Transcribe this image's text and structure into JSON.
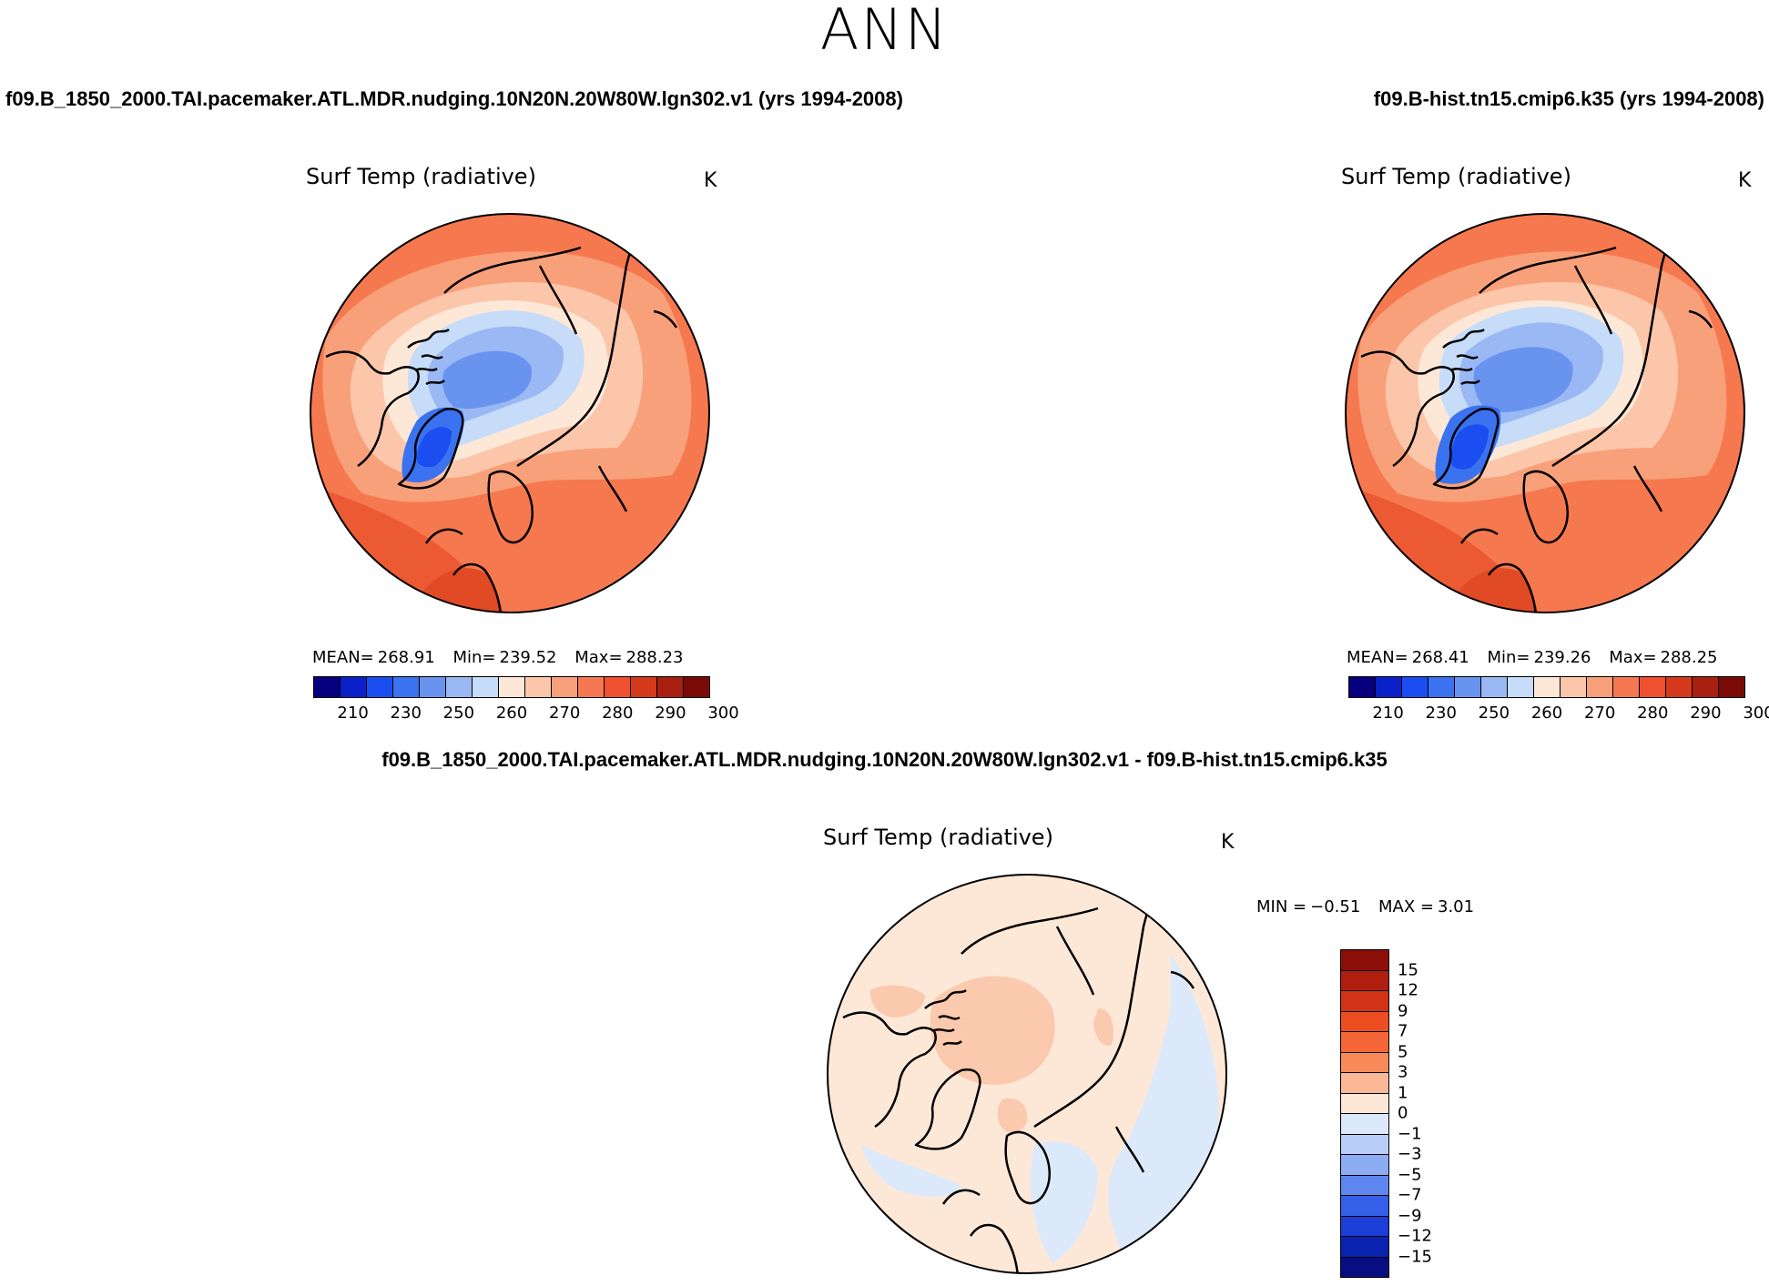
{
  "season": "ANN",
  "panels": [
    {
      "id": "case1",
      "case_title": "f09.B_1850_2000.TAI.pacemaker.ATL.MDR.nudging.10N20N.20W80W.lgn302.v1 (yrs 1994-2008)",
      "variable": "Surf Temp (radiative)",
      "units": "K",
      "stats": {
        "mean_label": "MEAN=",
        "mean": "268.91",
        "min_label": "Min=",
        "min": "239.52",
        "max_label": "Max=",
        "max": "288.23"
      }
    },
    {
      "id": "case2",
      "case_title": "f09.B-hist.tn15.cmip6.k35 (yrs 1994-2008)",
      "variable": "Surf Temp (radiative)",
      "units": "K",
      "stats": {
        "mean_label": "MEAN=",
        "mean": "268.41",
        "min_label": "Min=",
        "min": "239.26",
        "max_label": "Max=",
        "max": "288.25"
      }
    }
  ],
  "diff": {
    "title": "f09.B_1850_2000.TAI.pacemaker.ATL.MDR.nudging.10N20N.20W80W.lgn302.v1 - f09.B-hist.tn15.cmip6.k35",
    "variable": "Surf Temp (radiative)",
    "units": "K",
    "min_label": "MIN =",
    "min": "−0.51",
    "max_label": "MAX =",
    "max": "3.01"
  },
  "colorbar_abs": {
    "labels": [
      "210",
      "230",
      "250",
      "260",
      "270",
      "280",
      "290",
      "300"
    ],
    "colors": [
      "#06007f",
      "#0a20c8",
      "#1a4ef0",
      "#3a72f0",
      "#6894f0",
      "#9ab8f4",
      "#c6dcf8",
      "#fde8d8",
      "#fcc6aa",
      "#f8a07a",
      "#f67852",
      "#ee5030",
      "#d63a1c",
      "#aa2010",
      "#7a0a06"
    ]
  },
  "colorbar_diff": {
    "labels": [
      "15",
      "12",
      "9",
      "7",
      "5",
      "3",
      "1",
      "0",
      "−1",
      "−3",
      "−5",
      "−7",
      "−9",
      "−12",
      "−15"
    ],
    "colors": [
      "#8c0e08",
      "#b01e10",
      "#d23216",
      "#ec4e22",
      "#f46638",
      "#f88a5a",
      "#fbb896",
      "#fde8d8",
      "#dce9fb",
      "#b8cef8",
      "#8cacf4",
      "#5e86ee",
      "#3460e8",
      "#1a3ed6",
      "#0a22b0",
      "#060e80"
    ]
  }
}
